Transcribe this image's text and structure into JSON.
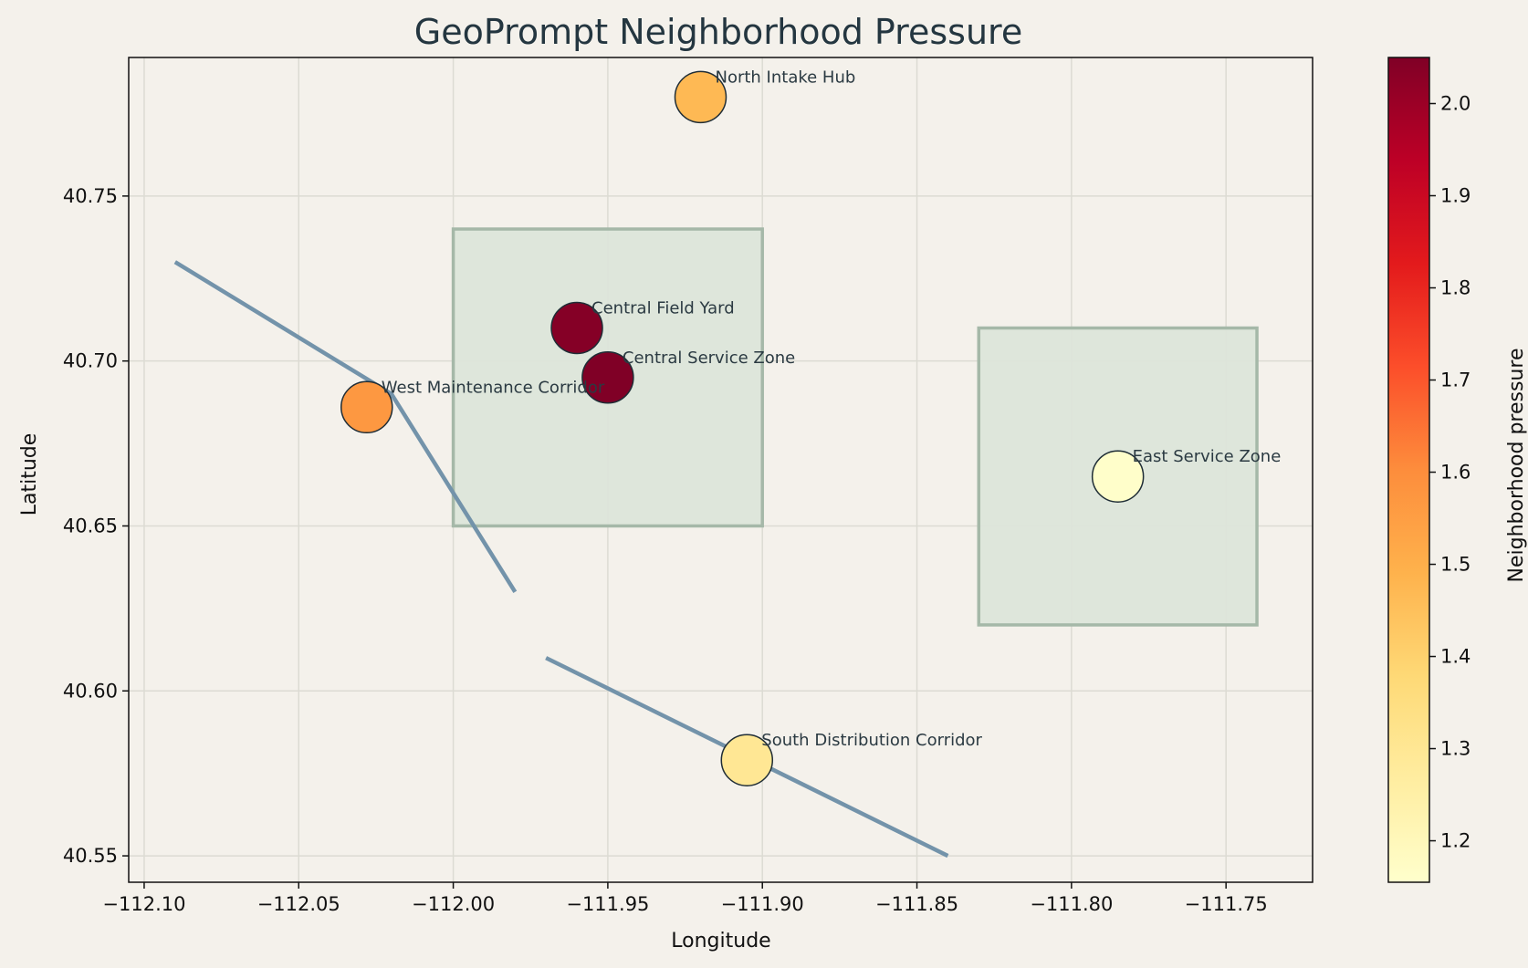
{
  "chart_data": {
    "type": "scatter",
    "title": "GeoPrompt Neighborhood Pressure",
    "xlabel": "Longitude",
    "ylabel": "Latitude",
    "xlim": [
      -112.105,
      -111.722
    ],
    "ylim": [
      40.542,
      40.792
    ],
    "grid": true,
    "xticks": [
      -112.1,
      -112.05,
      -112.0,
      -111.95,
      -111.9,
      -111.85,
      -111.8,
      -111.75
    ],
    "xtick_labels": [
      "−112.10",
      "−112.05",
      "−112.00",
      "−111.95",
      "−111.90",
      "−111.85",
      "−111.80",
      "−111.75"
    ],
    "yticks": [
      40.55,
      40.6,
      40.65,
      40.7,
      40.75
    ],
    "ytick_labels": [
      "40.55",
      "40.60",
      "40.65",
      "40.70",
      "40.75"
    ],
    "zones": [
      {
        "x0": -112.0,
        "x1": -111.9,
        "y0": 40.65,
        "y1": 40.74
      },
      {
        "x0": -111.83,
        "x1": -111.74,
        "y0": 40.62,
        "y1": 40.71
      }
    ],
    "corridors": [
      {
        "points": [
          [
            -112.09,
            40.73
          ],
          [
            -112.02,
            40.69
          ],
          [
            -111.98,
            40.63
          ]
        ]
      },
      {
        "points": [
          [
            -111.97,
            40.61
          ],
          [
            -111.84,
            40.55
          ]
        ]
      }
    ],
    "points": [
      {
        "label": "North Intake Hub",
        "x": -111.92,
        "y": 40.78,
        "pressure": 1.47
      },
      {
        "label": "Central Field Yard",
        "x": -111.96,
        "y": 40.71,
        "pressure": 2.04
      },
      {
        "label": "Central Service Zone",
        "x": -111.95,
        "y": 40.695,
        "pressure": 2.05
      },
      {
        "label": "West Maintenance Corridor",
        "x": -112.028,
        "y": 40.686,
        "pressure": 1.57
      },
      {
        "label": "East Service Zone",
        "x": -111.785,
        "y": 40.665,
        "pressure": 1.16
      },
      {
        "label": "South Distribution Corridor",
        "x": -111.905,
        "y": 40.579,
        "pressure": 1.3
      }
    ],
    "colorbar": {
      "label": "Neighborhood pressure",
      "min": 1.155,
      "max": 2.05,
      "ticks": [
        1.2,
        1.3,
        1.4,
        1.5,
        1.6,
        1.7,
        1.8,
        1.9,
        2.0
      ],
      "tick_labels": [
        "1.2",
        "1.3",
        "1.4",
        "1.5",
        "1.6",
        "1.7",
        "1.8",
        "1.9",
        "2.0"
      ],
      "colormap": [
        "#ffffcc",
        "#ffeda0",
        "#fed976",
        "#feb24c",
        "#fd8d3c",
        "#fc4e2a",
        "#e31a1c",
        "#bd0026",
        "#800026"
      ]
    },
    "colors": {
      "background": "#f4f1eb",
      "zone_fill": "#dce5da",
      "zone_stroke": "#a5b8a8",
      "corridor": "#7393aa",
      "grid": "#dcdbd3"
    }
  }
}
